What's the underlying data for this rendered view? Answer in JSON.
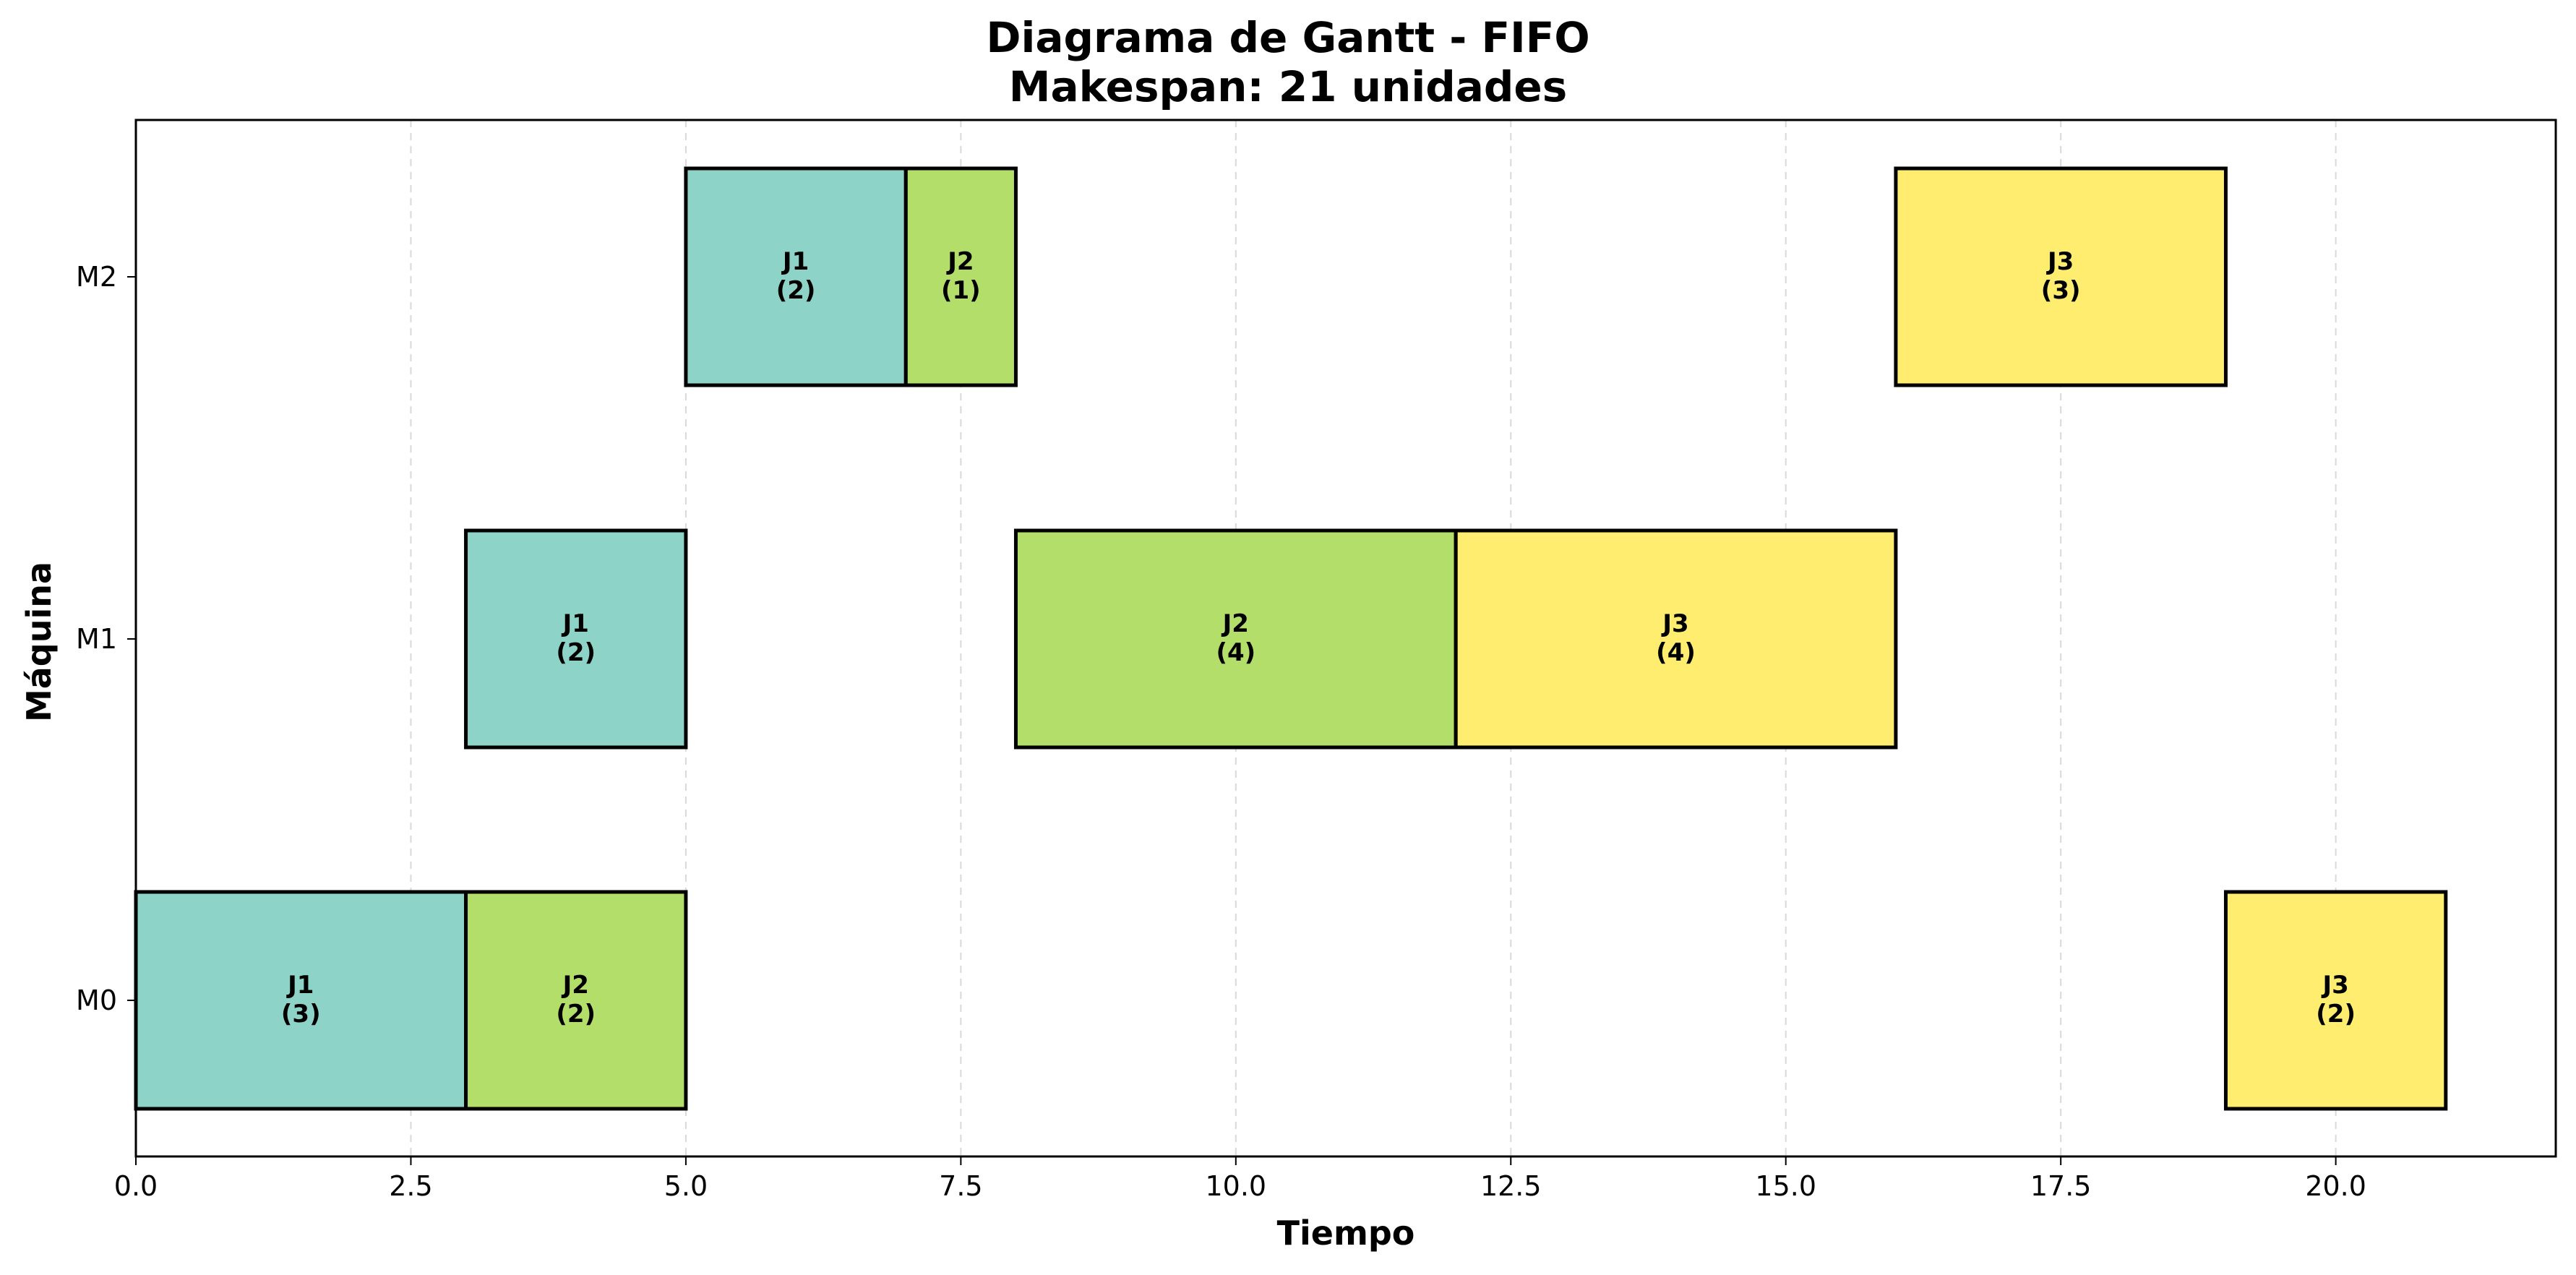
{
  "chart_data": {
    "type": "gantt",
    "title": "Diagrama de Gantt - FIFO",
    "subtitle": "Makespan: 21 unidades",
    "xlabel": "Tiempo",
    "ylabel": "Máquina",
    "xlim": [
      0,
      22
    ],
    "xticks": [
      0,
      2.5,
      5,
      7.5,
      10,
      12.5,
      15,
      17.5,
      20
    ],
    "xtick_labels": [
      "0.0",
      "2.5",
      "5.0",
      "7.5",
      "10.0",
      "12.5",
      "15.0",
      "17.5",
      "20.0"
    ],
    "machines": [
      "M0",
      "M1",
      "M2"
    ],
    "grid": "x dashed",
    "job_colors": {
      "J1": "#8dd3c7",
      "J2": "#b3de69",
      "J3": "#ffed6f"
    },
    "tasks": [
      {
        "machine": "M0",
        "job": "J1",
        "start": 0,
        "duration": 3,
        "label": "J1",
        "sublabel": "(3)"
      },
      {
        "machine": "M0",
        "job": "J2",
        "start": 3,
        "duration": 2,
        "label": "J2",
        "sublabel": "(2)"
      },
      {
        "machine": "M0",
        "job": "J3",
        "start": 19,
        "duration": 2,
        "label": "J3",
        "sublabel": "(2)"
      },
      {
        "machine": "M1",
        "job": "J1",
        "start": 3,
        "duration": 2,
        "label": "J1",
        "sublabel": "(2)"
      },
      {
        "machine": "M1",
        "job": "J2",
        "start": 8,
        "duration": 4,
        "label": "J2",
        "sublabel": "(4)"
      },
      {
        "machine": "M1",
        "job": "J3",
        "start": 12,
        "duration": 4,
        "label": "J3",
        "sublabel": "(4)"
      },
      {
        "machine": "M2",
        "job": "J1",
        "start": 5,
        "duration": 2,
        "label": "J1",
        "sublabel": "(2)"
      },
      {
        "machine": "M2",
        "job": "J2",
        "start": 7,
        "duration": 1,
        "label": "J2",
        "sublabel": "(1)"
      },
      {
        "machine": "M2",
        "job": "J3",
        "start": 16,
        "duration": 3,
        "label": "J3",
        "sublabel": "(3)"
      }
    ]
  }
}
